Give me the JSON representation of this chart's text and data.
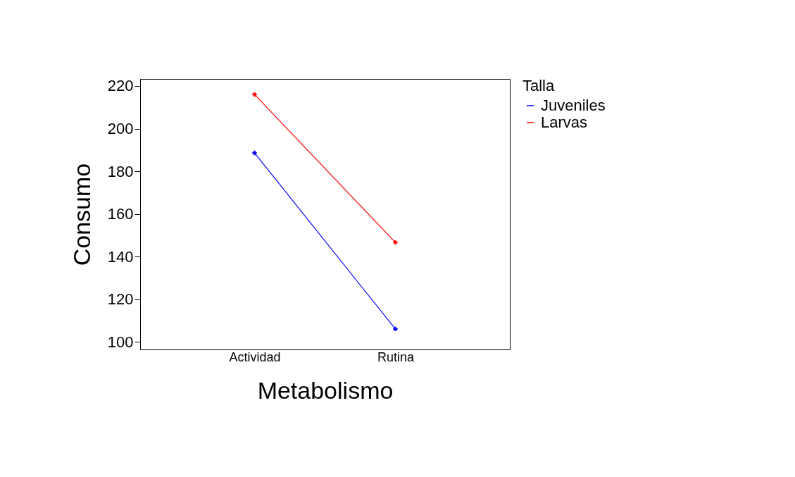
{
  "chart_data": {
    "type": "line",
    "xlabel": "Metabolismo",
    "ylabel": "Consumo",
    "legend_title": "Talla",
    "categories": [
      "Actividad",
      "Rutina"
    ],
    "series": [
      {
        "name": "Juveniles",
        "color": "#0000ff",
        "values": [
          188.6,
          106.0
        ]
      },
      {
        "name": "Larvas",
        "color": "#ff0000",
        "values": [
          216.0,
          146.6
        ]
      }
    ],
    "ylim": [
      96.4,
      223.3
    ],
    "yticks": [
      100,
      120,
      140,
      160,
      180,
      200,
      220
    ],
    "grid": false,
    "legend": "top right",
    "marker": "cross",
    "line_style": "solid"
  }
}
